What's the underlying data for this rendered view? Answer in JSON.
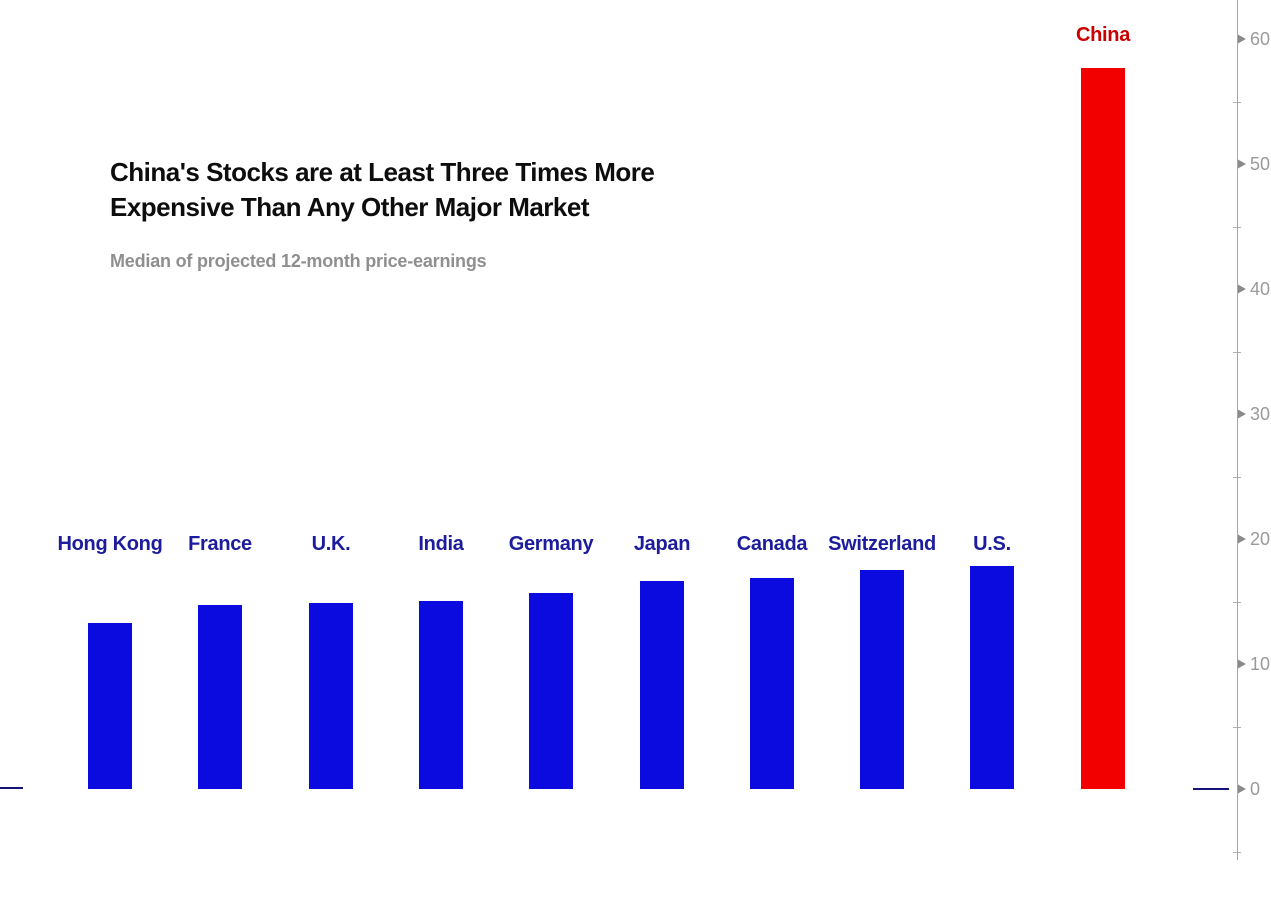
{
  "header": {
    "title_line1": "China's Stocks are at Least Three Times More",
    "title_line2": "Expensive Than Any Other Major Market",
    "subtitle": "Median of projected 12-month price-earnings"
  },
  "chart_data": {
    "type": "bar",
    "title": "China's Stocks are at Least Three Times More Expensive Than Any Other Major Market",
    "subtitle": "Median of projected 12-month price-earnings",
    "categories": [
      "Hong Kong",
      "France",
      "U.K.",
      "India",
      "Germany",
      "Japan",
      "Canada",
      "Switzerland",
      "U.S.",
      "China"
    ],
    "values": [
      13.3,
      14.7,
      14.9,
      15.0,
      15.7,
      16.6,
      16.9,
      17.5,
      17.8,
      57.7
    ],
    "highlight_category": "China",
    "xlabel": "",
    "ylabel": "",
    "ylim": [
      -7,
      62
    ],
    "yticks_major": [
      0,
      10,
      20,
      30,
      40,
      50,
      60
    ],
    "yticks_minor": [
      -5,
      5,
      15,
      25,
      35,
      45,
      55
    ],
    "axis_side": "right",
    "grid": false,
    "legend": false,
    "colors": {
      "bar_default": "#0b0be0",
      "bar_highlight": "#f20000",
      "label_default": "#1c1c9c",
      "label_highlight": "#cc0000",
      "axis": "#a8a8a8",
      "tick_text": "#9a9a9a",
      "baseline": "#141478",
      "title_text": "#0d0d0d",
      "subtitle_text": "#8f8f8f"
    }
  }
}
